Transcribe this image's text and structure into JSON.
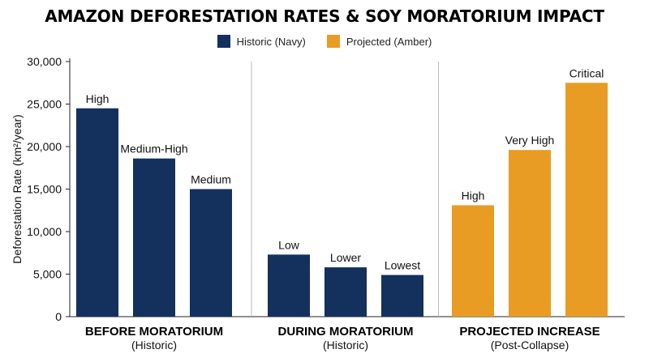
{
  "chart_data": {
    "type": "bar",
    "title": "AMAZON DEFORESTATION RATES & SOY MORATORIUM IMPACT",
    "ylabel": "Deforestation Rate (km²/year)",
    "xlabel": "",
    "ylim": [
      0,
      30000
    ],
    "yticks": [
      0,
      5000,
      10000,
      15000,
      20000,
      25000,
      30000
    ],
    "ytick_labels": [
      "0",
      "5,000",
      "10,000",
      "15,000",
      "20,000",
      "25,000",
      "30,000"
    ],
    "grid": false,
    "legend_position": "top",
    "colors": {
      "historic": "#14305c",
      "projected": "#e89c24"
    },
    "legend": [
      {
        "key": "historic",
        "label": "Historic (Navy)"
      },
      {
        "key": "projected",
        "label": "Projected (Amber)"
      }
    ],
    "groups": [
      {
        "title": "BEFORE MORATORIUM",
        "subtitle": "(Historic)",
        "series": "historic",
        "bars": [
          {
            "label": "High",
            "value": 24500
          },
          {
            "label": "Medium-High",
            "value": 18600
          },
          {
            "label": "Medium",
            "value": 15000
          }
        ]
      },
      {
        "title": "DURING MORATORIUM",
        "subtitle": "(Historic)",
        "series": "historic",
        "bars": [
          {
            "label": "Low",
            "value": 7300
          },
          {
            "label": "Lower",
            "value": 5800
          },
          {
            "label": "Lowest",
            "value": 4900
          }
        ]
      },
      {
        "title": "PROJECTED INCREASE",
        "subtitle": "(Post-Collapse)",
        "series": "projected",
        "bars": [
          {
            "label": "High",
            "value": 13100
          },
          {
            "label": "Very High",
            "value": 19600
          },
          {
            "label": "Critical",
            "value": 27500
          }
        ]
      }
    ]
  }
}
